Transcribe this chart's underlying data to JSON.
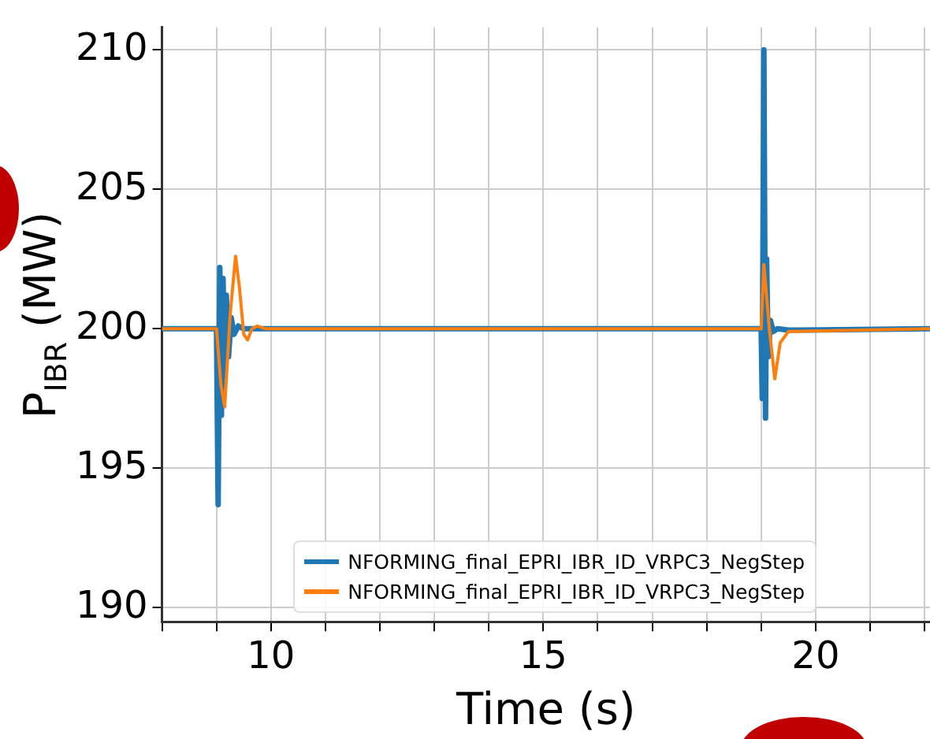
{
  "chart_data": {
    "type": "line",
    "xlabel": "Time (s)",
    "ylabel": "P$_{IBR}$ (MW)",
    "xlim": [
      8.0,
      22.1
    ],
    "xticks": [
      {
        "value": 8,
        "label": null
      },
      {
        "value": 9,
        "label": null
      },
      10,
      {
        "value": 11,
        "label": null
      },
      {
        "value": 12,
        "label": null
      },
      {
        "value": 13,
        "label": null
      },
      {
        "value": 14,
        "label": null
      },
      15,
      {
        "value": 16,
        "label": null
      },
      {
        "value": 17,
        "label": null
      },
      {
        "value": 18,
        "label": null
      },
      {
        "value": 19,
        "label": null
      },
      20,
      {
        "value": 21,
        "label": null
      },
      {
        "value": 22,
        "label": null
      }
    ],
    "ylim": [
      189.5,
      210.8
    ],
    "yticks": [
      190,
      195,
      200,
      205,
      210
    ],
    "grid": true,
    "legend": "bottom",
    "marker": "none",
    "line_style": "solid",
    "series": [
      {
        "name": "NFORMING_final_EPRI_IBR_ID_VRPC3_NegStep",
        "color": "#1f77b4",
        "x": [
          8.0,
          9.0,
          9.03,
          9.06,
          9.09,
          9.12,
          9.15,
          9.18,
          9.22,
          9.27,
          9.32,
          9.4,
          9.5,
          19.0,
          19.02,
          19.05,
          19.08,
          19.1,
          19.13,
          19.17,
          19.22,
          19.3,
          19.5,
          22.1
        ],
        "values": [
          200,
          200,
          193.7,
          202.2,
          196.9,
          201.8,
          198.3,
          201.2,
          199.0,
          200.4,
          199.8,
          200.1,
          200,
          200,
          197.5,
          210,
          196.8,
          202.5,
          199.0,
          200.3,
          199.9,
          200.0,
          199.95,
          200
        ]
      },
      {
        "name": "NFORMING_final_EPRI_IBR_ID_VRPC3_NegStep",
        "color": "#ff7f0e",
        "x": [
          8.0,
          9.0,
          9.08,
          9.15,
          9.25,
          9.35,
          9.42,
          9.5,
          9.57,
          9.65,
          9.75,
          9.9,
          19.0,
          19.05,
          19.15,
          19.25,
          19.35,
          19.5,
          22.1
        ],
        "values": [
          200,
          200,
          198.0,
          197.2,
          200.5,
          202.6,
          201.5,
          199.8,
          199.6,
          200.0,
          200.1,
          200,
          200,
          202.3,
          200.0,
          198.2,
          199.5,
          199.9,
          200
        ]
      }
    ]
  }
}
